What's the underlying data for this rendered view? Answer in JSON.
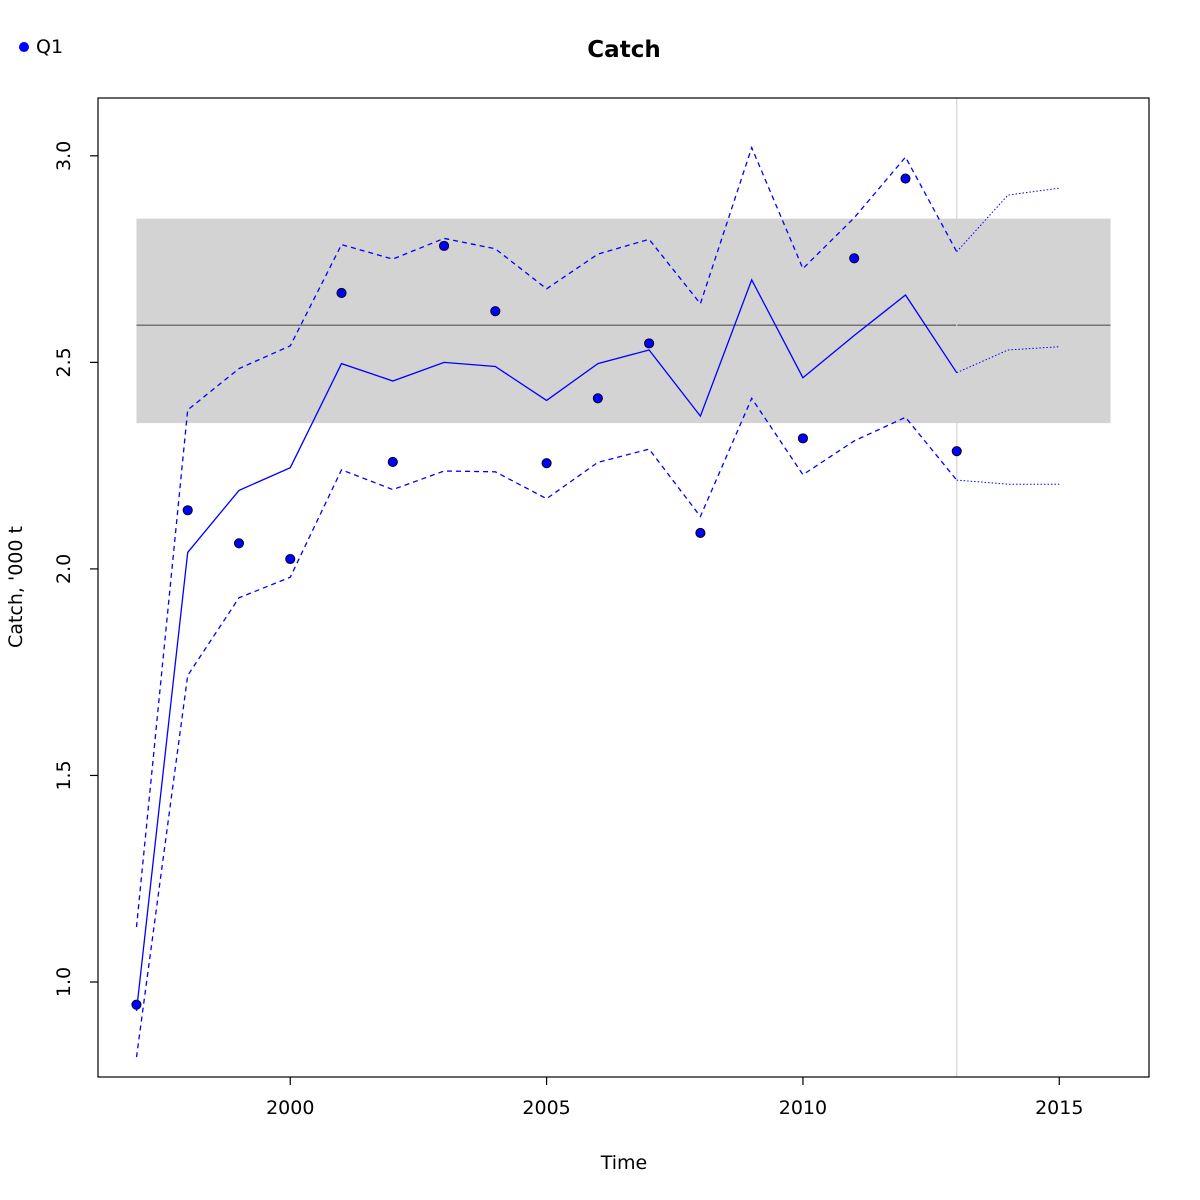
{
  "chart_data": {
    "type": "line",
    "title": "Catch",
    "xlabel": "Time",
    "ylabel": "Catch, '000 t",
    "xlim": [
      1996.25,
      2016.75
    ],
    "ylim": [
      0.77,
      3.14
    ],
    "x_ticks": [
      2000,
      2005,
      2010,
      2015
    ],
    "y_ticks": [
      1.0,
      1.5,
      2.0,
      2.5,
      3.0
    ],
    "x_tick_labels": [
      "2000",
      "2005",
      "2010",
      "2015"
    ],
    "y_tick_labels": [
      "1.0",
      "1.5",
      "2.0",
      "2.5",
      "3.0"
    ],
    "grid": false,
    "legend": {
      "position": "top-left",
      "entries": [
        {
          "label": "Q1",
          "marker": "filled-circle",
          "color": "#0000ff"
        }
      ]
    },
    "reference_band": {
      "x_range": [
        1997,
        2016
      ],
      "y_range": [
        2.353,
        2.848
      ],
      "color": "#d3d3d3"
    },
    "reference_line": {
      "y": 2.59,
      "color": "#555555"
    },
    "vertical_line": {
      "x": 2013,
      "color": "#d3d3d3"
    },
    "series": [
      {
        "name": "Q1",
        "style": "points",
        "color": "#0000ff",
        "x": [
          1997,
          1998,
          1999,
          2000,
          2001,
          2002,
          2003,
          2004,
          2005,
          2006,
          2007,
          2008,
          2010,
          2011,
          2012,
          2013
        ],
        "y": [
          0.945,
          2.142,
          2.062,
          2.024,
          2.668,
          2.259,
          2.782,
          2.624,
          2.256,
          2.413,
          2.546,
          2.087,
          2.316,
          2.752,
          2.945,
          2.285
        ]
      },
      {
        "style": "solid",
        "color": "#0000ff",
        "x": [
          1997,
          1998,
          1999,
          2000,
          2001,
          2002,
          2003,
          2004,
          2005,
          2006,
          2007,
          2008,
          2009,
          2010,
          2011,
          2012,
          2013
        ],
        "y": [
          0.93,
          2.04,
          2.19,
          2.245,
          2.497,
          2.455,
          2.5,
          2.49,
          2.408,
          2.497,
          2.53,
          2.37,
          2.7,
          2.463,
          2.565,
          2.663,
          2.475
        ]
      },
      {
        "style": "dashed",
        "color": "#0000ff",
        "x": [
          1997,
          1998,
          1999,
          2000,
          2001,
          2002,
          2003,
          2004,
          2005,
          2006,
          2007,
          2008,
          2009,
          2010,
          2011,
          2012,
          2013
        ],
        "y": [
          1.133,
          2.385,
          2.485,
          2.54,
          2.785,
          2.75,
          2.8,
          2.775,
          2.678,
          2.762,
          2.798,
          2.642,
          3.02,
          2.727,
          2.85,
          2.997,
          2.768
        ]
      },
      {
        "style": "dashed",
        "color": "#0000ff",
        "x": [
          1997,
          1998,
          1999,
          2000,
          2001,
          2002,
          2003,
          2004,
          2005,
          2006,
          2007,
          2008,
          2009,
          2010,
          2011,
          2012,
          2013
        ],
        "y": [
          0.818,
          1.742,
          1.93,
          1.98,
          2.24,
          2.192,
          2.237,
          2.235,
          2.17,
          2.258,
          2.29,
          2.127,
          2.413,
          2.228,
          2.31,
          2.367,
          2.215
        ]
      },
      {
        "style": "dotted",
        "color": "#0000ff",
        "x": [
          2013,
          2014,
          2015
        ],
        "y": [
          2.475,
          2.53,
          2.538
        ]
      },
      {
        "style": "dotted",
        "color": "#0000ff",
        "x": [
          2013,
          2014,
          2015
        ],
        "y": [
          2.768,
          2.905,
          2.922
        ]
      },
      {
        "style": "dotted",
        "color": "#0000ff",
        "x": [
          2013,
          2014,
          2015
        ],
        "y": [
          2.215,
          2.205,
          2.205
        ]
      }
    ]
  }
}
